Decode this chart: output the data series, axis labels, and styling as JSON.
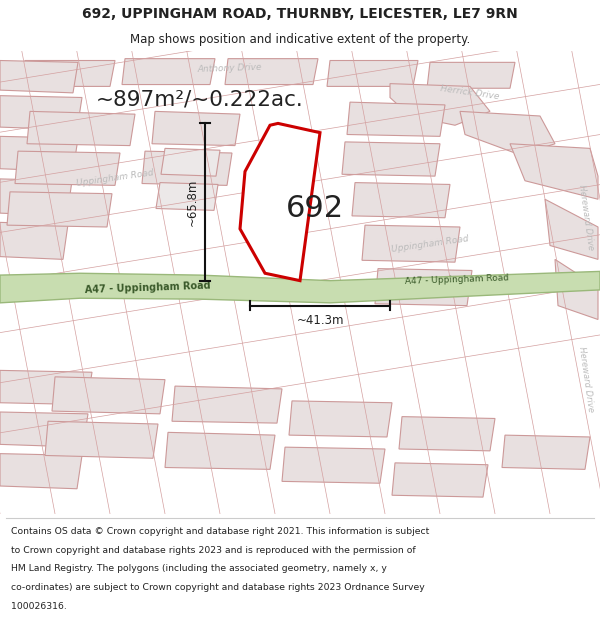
{
  "title_line1": "692, UPPINGHAM ROAD, THURNBY, LEICESTER, LE7 9RN",
  "title_line2": "Map shows position and indicative extent of the property.",
  "area_text": "~897m²/~0.222ac.",
  "label_692": "692",
  "dim_height": "~65.8m",
  "dim_width": "~41.3m",
  "footer_lines": [
    "Contains OS data © Crown copyright and database right 2021. This information is subject",
    "to Crown copyright and database rights 2023 and is reproduced with the permission of",
    "HM Land Registry. The polygons (including the associated geometry, namely x, y",
    "co-ordinates) are subject to Crown copyright and database rights 2023 Ordnance Survey",
    "100026316."
  ],
  "map_bg": "#f2eded",
  "road_green_color": "#c8ddb0",
  "road_green_border": "#9ab87a",
  "road_label_color": "#3a5a2a",
  "plot_outline_color": "#cc0000",
  "plot_fill_color": "#ffffff",
  "dim_line_color": "#111111",
  "street_line_color": "#d4a0a0",
  "block_fill_color": "#e8e0e0",
  "block_edge_color": "#cc9999",
  "text_dark": "#222222",
  "text_street": "#aaaaaa",
  "text_road": "#666666"
}
